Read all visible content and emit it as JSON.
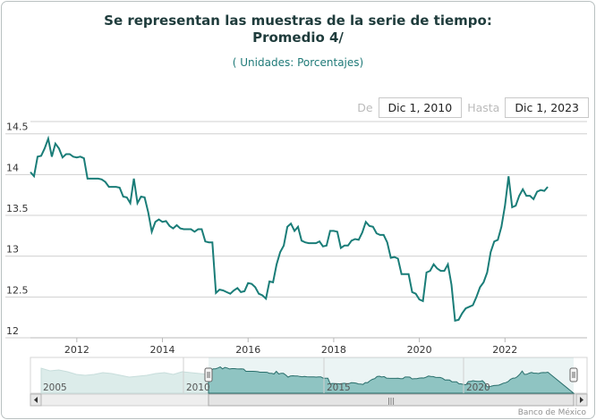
{
  "title": {
    "line1": "Se representan las muestras de la serie de tiempo:",
    "line2": "Promedio 4/"
  },
  "subtitle": "( Unidades:  Porcentajes)",
  "range_selector": {
    "from_label": "De",
    "from_value": "Dic 1, 2010",
    "to_label": "Hasta",
    "to_value": "Dic 1, 2023"
  },
  "credit": "Banco de México",
  "colors": {
    "line": "#1a7d78",
    "navigator_fill": "#8fc4c2",
    "navigator_overview": "#dcecea"
  },
  "navigator": {
    "year_labels": [
      "2005",
      "2010",
      "2015",
      "2020"
    ],
    "scrollbar_grip": "|||"
  },
  "chart_data": {
    "type": "line",
    "title": "Se representan las muestras de la serie de tiempo: Promedio 4/",
    "subtitle": "( Unidades:  Porcentajes)",
    "xlabel": "",
    "ylabel": "",
    "ylim": [
      12,
      14.5
    ],
    "xlim": [
      "2010-12-01",
      "2023-12-01"
    ],
    "y_ticks": [
      "12",
      "12.5",
      "13",
      "13.5",
      "14",
      "14.5"
    ],
    "x_ticks": [
      "2012",
      "2014",
      "2016",
      "2018",
      "2020",
      "2022"
    ],
    "grid": "horizontal",
    "legend": "none",
    "series": [
      {
        "points": [
          [
            "2010-12",
            14.03
          ],
          [
            "2011-01",
            13.98
          ],
          [
            "2011-02",
            14.22
          ],
          [
            "2011-03",
            14.23
          ],
          [
            "2011-04",
            14.32
          ],
          [
            "2011-05",
            14.44
          ],
          [
            "2011-06",
            14.22
          ],
          [
            "2011-07",
            14.38
          ],
          [
            "2011-08",
            14.32
          ],
          [
            "2011-09",
            14.21
          ],
          [
            "2011-10",
            14.25
          ],
          [
            "2011-11",
            14.25
          ],
          [
            "2011-12",
            14.22
          ],
          [
            "2012-01",
            14.21
          ],
          [
            "2012-02",
            14.22
          ],
          [
            "2012-03",
            14.2
          ],
          [
            "2012-04",
            13.95
          ],
          [
            "2012-05",
            13.95
          ],
          [
            "2012-06",
            13.95
          ],
          [
            "2012-07",
            13.95
          ],
          [
            "2012-08",
            13.94
          ],
          [
            "2012-09",
            13.91
          ],
          [
            "2012-10",
            13.85
          ],
          [
            "2012-11",
            13.85
          ],
          [
            "2012-12",
            13.85
          ],
          [
            "2013-01",
            13.84
          ],
          [
            "2013-02",
            13.73
          ],
          [
            "2013-03",
            13.72
          ],
          [
            "2013-04",
            13.65
          ],
          [
            "2013-05",
            13.95
          ],
          [
            "2013-06",
            13.65
          ],
          [
            "2013-07",
            13.73
          ],
          [
            "2013-08",
            13.72
          ],
          [
            "2013-09",
            13.54
          ],
          [
            "2013-10",
            13.3
          ],
          [
            "2013-11",
            13.42
          ],
          [
            "2013-12",
            13.45
          ],
          [
            "2014-01",
            13.42
          ],
          [
            "2014-02",
            13.43
          ],
          [
            "2014-03",
            13.37
          ],
          [
            "2014-04",
            13.34
          ],
          [
            "2014-05",
            13.38
          ],
          [
            "2014-06",
            13.34
          ],
          [
            "2014-07",
            13.33
          ],
          [
            "2014-08",
            13.33
          ],
          [
            "2014-09",
            13.33
          ],
          [
            "2014-10",
            13.3
          ],
          [
            "2014-11",
            13.33
          ],
          [
            "2014-12",
            13.33
          ],
          [
            "2015-01",
            13.18
          ],
          [
            "2015-02",
            13.17
          ],
          [
            "2015-03",
            13.17
          ],
          [
            "2015-04",
            12.55
          ],
          [
            "2015-05",
            12.59
          ],
          [
            "2015-06",
            12.58
          ],
          [
            "2015-07",
            12.56
          ],
          [
            "2015-08",
            12.54
          ],
          [
            "2015-09",
            12.58
          ],
          [
            "2015-10",
            12.61
          ],
          [
            "2015-11",
            12.56
          ],
          [
            "2015-12",
            12.57
          ],
          [
            "2016-01",
            12.67
          ],
          [
            "2016-02",
            12.66
          ],
          [
            "2016-03",
            12.62
          ],
          [
            "2016-04",
            12.54
          ],
          [
            "2016-05",
            12.52
          ],
          [
            "2016-06",
            12.48
          ],
          [
            "2016-07",
            12.69
          ],
          [
            "2016-08",
            12.68
          ],
          [
            "2016-09",
            12.9
          ],
          [
            "2016-10",
            13.05
          ],
          [
            "2016-11",
            13.13
          ],
          [
            "2016-12",
            13.36
          ],
          [
            "2017-01",
            13.4
          ],
          [
            "2017-02",
            13.31
          ],
          [
            "2017-03",
            13.36
          ],
          [
            "2017-04",
            13.19
          ],
          [
            "2017-05",
            13.17
          ],
          [
            "2017-06",
            13.16
          ],
          [
            "2017-07",
            13.16
          ],
          [
            "2017-08",
            13.16
          ],
          [
            "2017-09",
            13.18
          ],
          [
            "2017-10",
            13.12
          ],
          [
            "2017-11",
            13.13
          ],
          [
            "2017-12",
            13.31
          ],
          [
            "2018-01",
            13.31
          ],
          [
            "2018-02",
            13.3
          ],
          [
            "2018-03",
            13.1
          ],
          [
            "2018-04",
            13.13
          ],
          [
            "2018-05",
            13.13
          ],
          [
            "2018-06",
            13.19
          ],
          [
            "2018-07",
            13.21
          ],
          [
            "2018-08",
            13.2
          ],
          [
            "2018-09",
            13.29
          ],
          [
            "2018-10",
            13.42
          ],
          [
            "2018-11",
            13.37
          ],
          [
            "2018-12",
            13.36
          ],
          [
            "2019-01",
            13.28
          ],
          [
            "2019-02",
            13.26
          ],
          [
            "2019-03",
            13.26
          ],
          [
            "2019-04",
            13.17
          ],
          [
            "2019-05",
            12.98
          ],
          [
            "2019-06",
            12.99
          ],
          [
            "2019-07",
            12.97
          ],
          [
            "2019-08",
            12.78
          ],
          [
            "2019-09",
            12.78
          ],
          [
            "2019-10",
            12.78
          ],
          [
            "2019-11",
            12.56
          ],
          [
            "2019-12",
            12.54
          ],
          [
            "2020-01",
            12.47
          ],
          [
            "2020-02",
            12.45
          ],
          [
            "2020-03",
            12.8
          ],
          [
            "2020-04",
            12.82
          ],
          [
            "2020-05",
            12.9
          ],
          [
            "2020-06",
            12.85
          ],
          [
            "2020-07",
            12.82
          ],
          [
            "2020-08",
            12.82
          ],
          [
            "2020-09",
            12.9
          ],
          [
            "2020-10",
            12.65
          ],
          [
            "2020-11",
            12.21
          ],
          [
            "2020-12",
            12.22
          ],
          [
            "2021-01",
            12.3
          ],
          [
            "2021-02",
            12.36
          ],
          [
            "2021-03",
            12.38
          ],
          [
            "2021-04",
            12.4
          ],
          [
            "2021-05",
            12.5
          ],
          [
            "2021-06",
            12.62
          ],
          [
            "2021-07",
            12.68
          ],
          [
            "2021-08",
            12.8
          ],
          [
            "2021-09",
            13.05
          ],
          [
            "2021-10",
            13.18
          ],
          [
            "2021-11",
            13.2
          ],
          [
            "2021-12",
            13.36
          ],
          [
            "2022-01",
            13.62
          ],
          [
            "2022-02",
            13.98
          ],
          [
            "2022-03",
            13.6
          ],
          [
            "2022-04",
            13.62
          ],
          [
            "2022-05",
            13.74
          ],
          [
            "2022-06",
            13.82
          ],
          [
            "2022-07",
            13.74
          ],
          [
            "2022-08",
            13.74
          ],
          [
            "2022-09",
            13.7
          ],
          [
            "2022-10",
            13.79
          ],
          [
            "2022-11",
            13.81
          ],
          [
            "2022-12",
            13.8
          ],
          [
            "2023-01",
            13.85
          ]
        ]
      }
    ]
  }
}
